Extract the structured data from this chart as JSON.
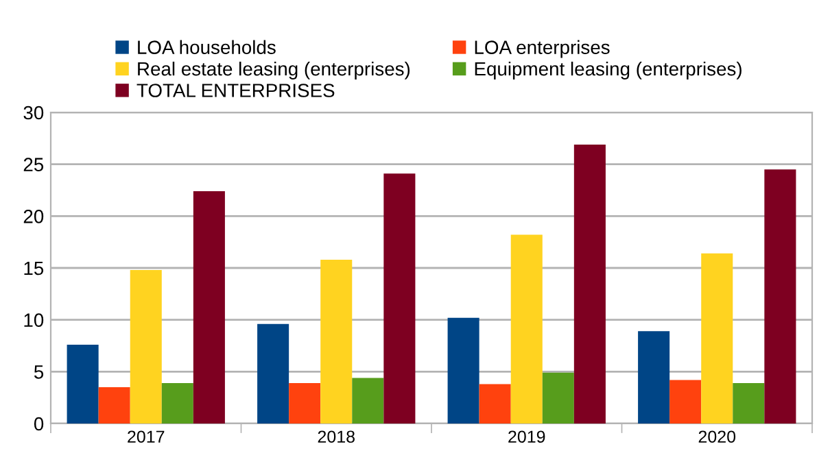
{
  "chart_data": {
    "type": "bar",
    "categories": [
      "2017",
      "2018",
      "2019",
      "2020"
    ],
    "series": [
      {
        "name": "LOA households",
        "color": "#004586",
        "values": [
          7.6,
          9.6,
          10.2,
          8.9
        ]
      },
      {
        "name": "LOA enterprises",
        "color": "#ff420e",
        "values": [
          3.5,
          3.9,
          3.8,
          4.2
        ]
      },
      {
        "name": "Real estate leasing (enterprises)",
        "color": "#ffd320",
        "values": [
          14.8,
          15.8,
          18.2,
          16.4
        ]
      },
      {
        "name": "Equipment leasing (enterprises)",
        "color": "#579d1c",
        "values": [
          3.9,
          4.4,
          4.9,
          3.9
        ]
      },
      {
        "name": "TOTAL ENTERPRISES",
        "color": "#7e0021",
        "values": [
          22.4,
          24.1,
          26.9,
          24.5
        ]
      }
    ],
    "ylim": [
      0,
      30
    ],
    "yticks": [
      0,
      5,
      10,
      15,
      20,
      25,
      30
    ],
    "grid": "y",
    "legend": "top"
  }
}
